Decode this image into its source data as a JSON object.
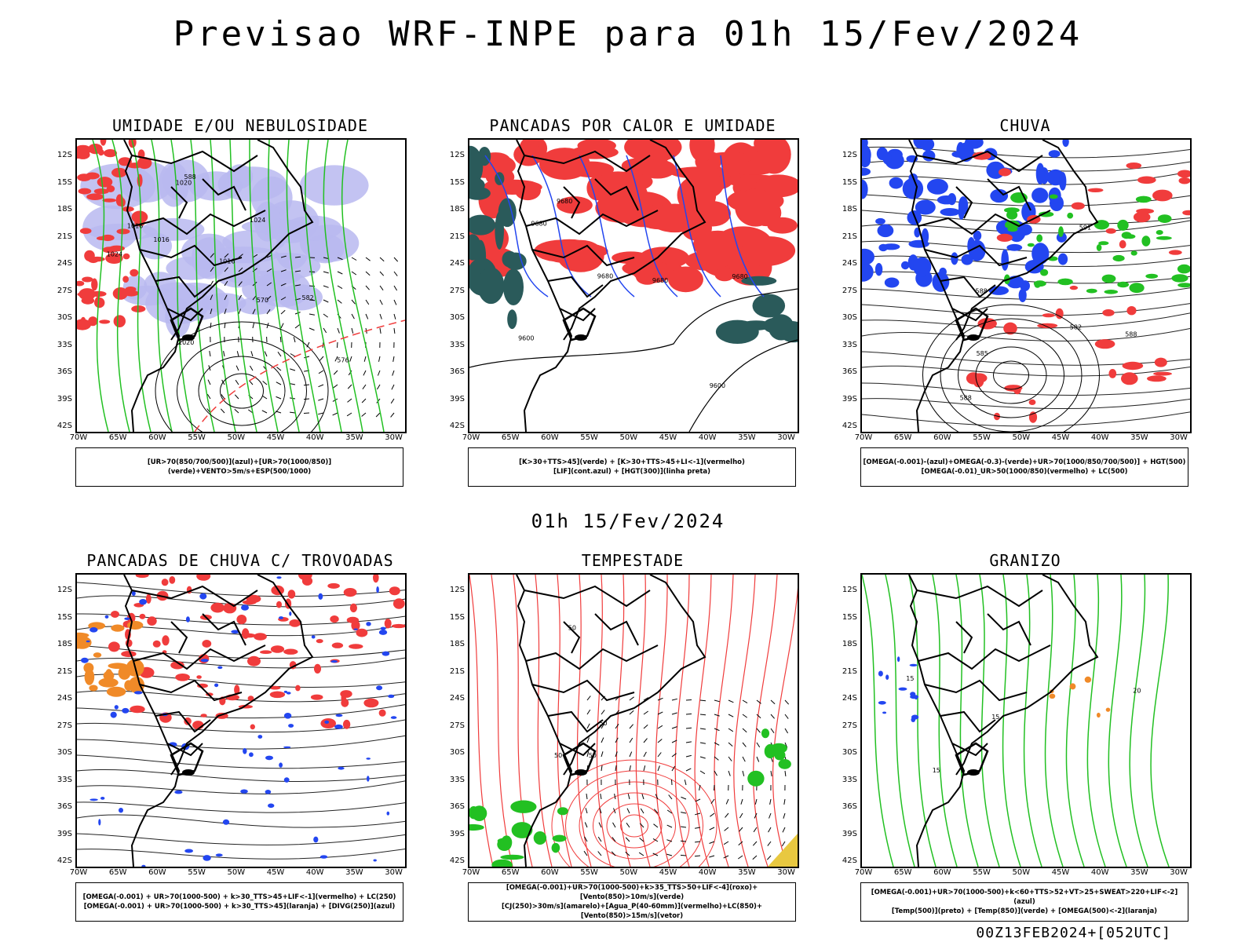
{
  "main_title": "Previsao WRF-INPE  para 01h 15/Fev/2024",
  "mid_title": "01h 15/Fev/2024",
  "run_stamp": "00Z13FEB2024+[052UTC]",
  "lat_ticks": [
    "12S",
    "15S",
    "18S",
    "21S",
    "24S",
    "27S",
    "30S",
    "33S",
    "36S",
    "39S",
    "42S"
  ],
  "lon_ticks": [
    "70W",
    "65W",
    "60W",
    "55W",
    "50W",
    "45W",
    "40W",
    "35W",
    "30W"
  ],
  "colors": {
    "blue": "#2346f0",
    "green": "#22c022",
    "red": "#f03c3c",
    "light_blue": "#b8b8f0",
    "orange": "#f08a28",
    "dark_teal": "#2a5a5a",
    "yellow": "#e8c840"
  },
  "panels": [
    {
      "title": "UMIDADE E/OU NEBULOSIDADE",
      "legend_line1": "[UR>70(850/700/500)](azul)+[UR>70(1000/850)](verde)+VENTO>5m/s+ESP(500/1000)",
      "legend_line2": "",
      "contour_labels": [
        "1016",
        "1016",
        "1016",
        "1020",
        "1020",
        "1024",
        "1024",
        "570",
        "576",
        "582",
        "588"
      ]
    },
    {
      "title": "PANCADAS POR CALOR E UMIDADE",
      "legend_line1": "[K>30+TTS>45](verde) + [K>30+TTS>45+LI<-1](vermelho)",
      "legend_line2": "[LIF](cont.azul) + [HGT(300)](linha preta)",
      "contour_labels": [
        "9680",
        "9680",
        "9680",
        "9600",
        "9600",
        "9680",
        "9680"
      ]
    },
    {
      "title": "CHUVA",
      "legend_line1": "[OMEGA(-0.001)-(azul)+OMEGA(-0.3)-(verde)+UR>70(1000/850/700/500)] + HGT(500)",
      "legend_line2": "[OMEGA(-0.01)_UR>50(1000/850)(vermelho) + LC(500)",
      "contour_labels": [
        "588",
        "582",
        "588",
        "585",
        "588",
        "591"
      ]
    },
    {
      "title": "PANCADAS DE CHUVA C/ TROVOADAS",
      "legend_line1": "[OMEGA(-0.001) + UR>70(1000-500) + k>30_TTS>45+LIF<-1](vermelho) + LC(250)",
      "legend_line2": "[OMEGA(-0.001) + UR>70(1000-500) + k>30_TTS>45](laranja) + [DIVG(250)](azul)",
      "contour_labels": []
    },
    {
      "title": "TEMPESTADE",
      "legend_line1": "[OMEGA(-0.001)+UR>70(1000-500)+k>35_TTS>50+LIF<-4](roxo)+[Vento(850)>10m/s](verde)",
      "legend_line2": "[CJ(250)>30m/s](amarelo)+[Agua_P(40-60mm)](vermelho)+LC(850)+[Vento(850)>15m/s](vetor)",
      "contour_labels": [
        "50",
        "50",
        "50",
        "50"
      ]
    },
    {
      "title": "GRANIZO",
      "legend_line1": "[OMEGA(-0.001)+UR>70(1000-500)+k<60+TTS>52+VT>25+SWEAT>220+LIF<-2](azul)",
      "legend_line2": "[Temp(500)](preto) + [Temp(850)](verde) + [OMEGA(500)<-2](laranja)",
      "contour_labels": [
        "15",
        "15",
        "15",
        "20"
      ]
    }
  ]
}
